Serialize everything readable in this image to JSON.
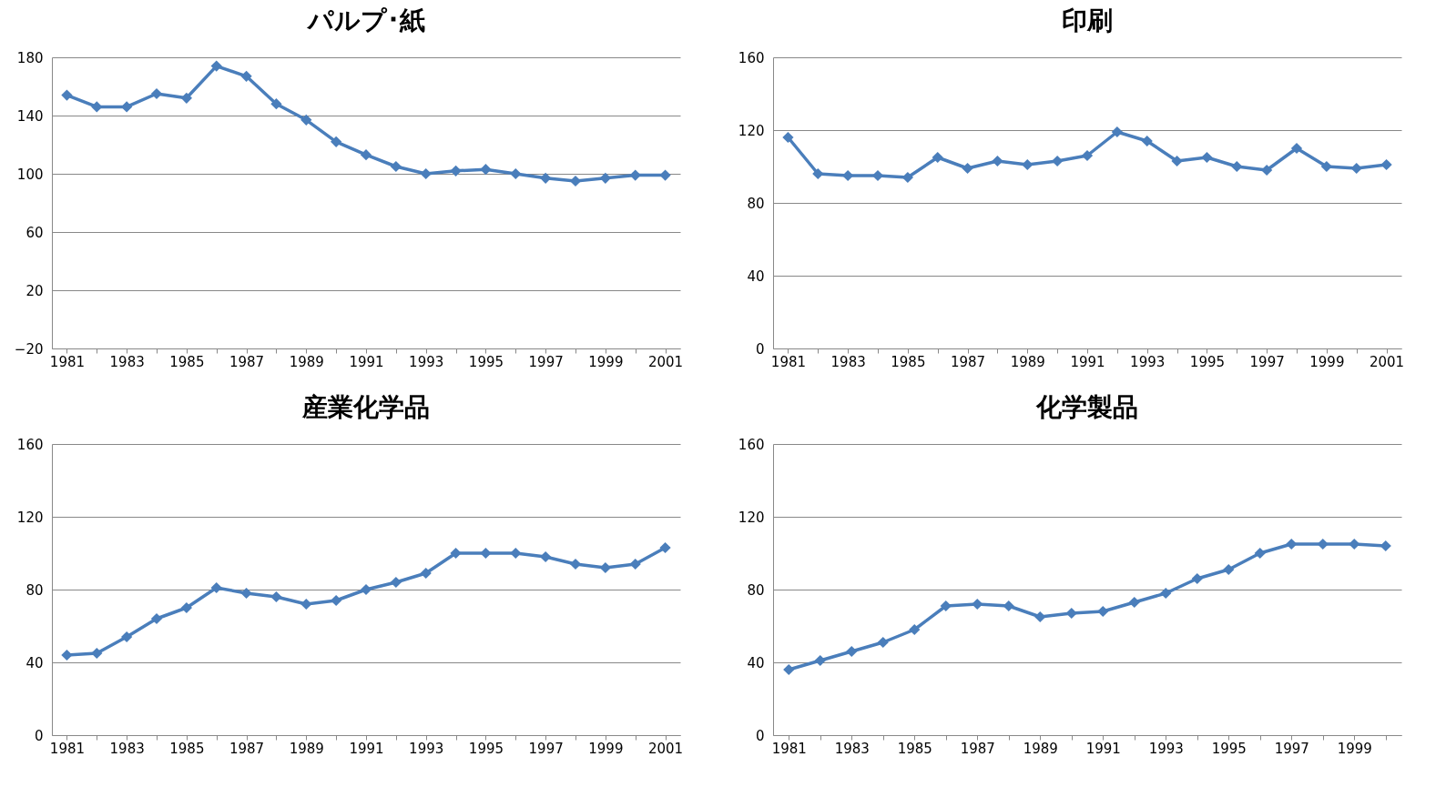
{
  "chart_data": [
    {
      "type": "line",
      "title": "パルプ･紙",
      "categories": [
        "1981",
        null,
        "1983",
        null,
        "1985",
        null,
        "1987",
        null,
        "1989",
        null,
        "1991",
        null,
        "1993",
        null,
        "1995",
        null,
        "1997",
        null,
        "1999",
        null,
        "2001"
      ],
      "series": [
        {
          "color": "#4a7ebb",
          "values": [
            154,
            146,
            146,
            155,
            152,
            174,
            167,
            148,
            137,
            122,
            113,
            105,
            100,
            102,
            103,
            100,
            97,
            95,
            97,
            99,
            99
          ]
        }
      ],
      "ylim": [
        -20,
        180
      ],
      "yticks": [
        -20,
        20,
        60,
        100,
        140,
        180
      ],
      "grid": "y",
      "marker": "diamond",
      "line_style": "solid"
    },
    {
      "type": "line",
      "title": "印刷",
      "categories": [
        "1981",
        null,
        "1983",
        null,
        "1985",
        null,
        "1987",
        null,
        "1989",
        null,
        "1991",
        null,
        "1993",
        null,
        "1995",
        null,
        "1997",
        null,
        "1999",
        null,
        "2001"
      ],
      "series": [
        {
          "color": "#4a7ebb",
          "values": [
            116,
            96,
            95,
            95,
            94,
            105,
            99,
            103,
            101,
            103,
            106,
            119,
            114,
            103,
            105,
            100,
            98,
            110,
            100,
            99,
            101
          ]
        }
      ],
      "ylim": [
        0,
        160
      ],
      "yticks": [
        0,
        40,
        80,
        120,
        160
      ],
      "grid": "y",
      "marker": "diamond",
      "line_style": "solid"
    },
    {
      "type": "line",
      "title": "産業化学品",
      "categories": [
        "1981",
        null,
        "1983",
        null,
        "1985",
        null,
        "1987",
        null,
        "1989",
        null,
        "1991",
        null,
        "1993",
        null,
        "1995",
        null,
        "1997",
        null,
        "1999",
        null,
        "2001"
      ],
      "series": [
        {
          "color": "#4a7ebb",
          "values": [
            44,
            45,
            54,
            64,
            70,
            81,
            78,
            76,
            72,
            74,
            80,
            84,
            89,
            100,
            100,
            100,
            98,
            94,
            92,
            94,
            103
          ]
        }
      ],
      "ylim": [
        0,
        160
      ],
      "yticks": [
        0,
        40,
        80,
        120,
        160
      ],
      "grid": "y",
      "marker": "diamond",
      "line_style": "solid"
    },
    {
      "type": "line",
      "title": "化学製品",
      "categories": [
        "1981",
        null,
        "1983",
        null,
        "1985",
        null,
        "1987",
        null,
        "1989",
        null,
        "1991",
        null,
        "1993",
        null,
        "1995",
        null,
        "1997",
        null,
        "1999",
        null
      ],
      "series": [
        {
          "color": "#4a7ebb",
          "values": [
            36,
            41,
            46,
            51,
            58,
            71,
            72,
            71,
            65,
            67,
            68,
            73,
            78,
            86,
            91,
            100,
            105,
            105,
            105,
            104
          ]
        }
      ],
      "ylim": [
        0,
        160
      ],
      "yticks": [
        0,
        40,
        80,
        120,
        160
      ],
      "grid": "y",
      "marker": "diamond",
      "line_style": "solid"
    }
  ]
}
